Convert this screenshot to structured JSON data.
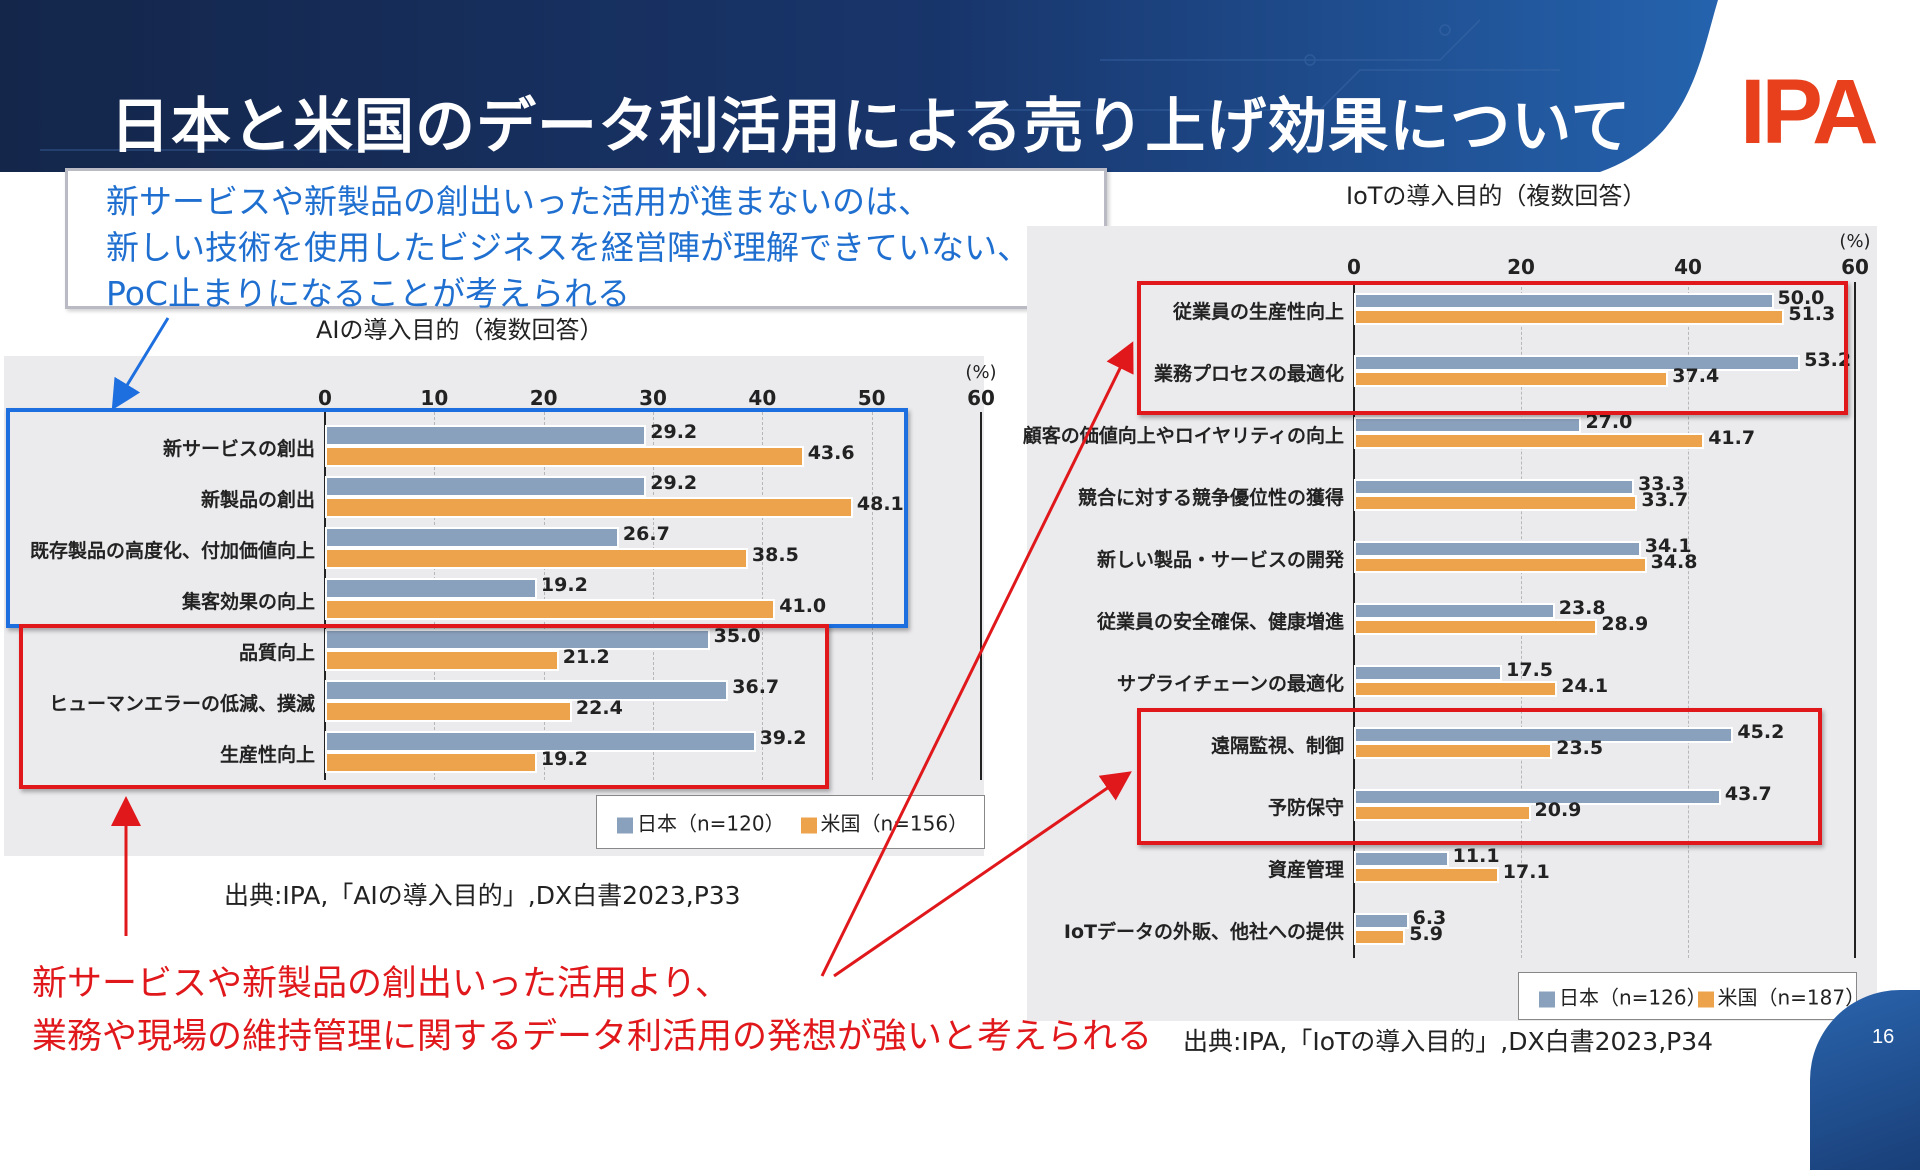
{
  "header": {
    "title": "日本と米国のデータ利活用による売り上げ効果について",
    "logo": "IPA",
    "page_number": "16"
  },
  "callouts": {
    "blue_lines": [
      "新サービスや新製品の創出いった活用が進まないのは、",
      "新しい技術を使用したビジネスを経営陣が理解できていない、",
      "PoC止まりになることが考えられる"
    ],
    "red_lines": [
      "新サービスや新製品の創出いった活用より、",
      "業務や現場の維持管理に関するデータ利活用の発想が強いと考えられる"
    ]
  },
  "colors": {
    "japan": "#8aa1bd",
    "us": "#eda34c",
    "highlight_red": "#e0181b",
    "highlight_blue": "#1d6fe0",
    "logo": "#e8401c"
  },
  "chart_data": [
    {
      "type": "bar",
      "orientation": "horizontal",
      "title": "AIの導入目的（複数回答）",
      "source": "出典:IPA,「AIの導入目的」,DX白書2023,P33",
      "unit_label": "(%)",
      "xlim": [
        0,
        60
      ],
      "xticks": [
        "0",
        "10",
        "20",
        "30",
        "40",
        "50",
        "60"
      ],
      "grid": true,
      "legend_position": "bottom-right",
      "categories": [
        "新サービスの創出",
        "新製品の創出",
        "既存製品の高度化、付加価値向上",
        "集客効果の向上",
        "品質向上",
        "ヒューマンエラーの低減、撲滅",
        "生産性向上"
      ],
      "series": [
        {
          "name": "日本（n=120）",
          "values": [
            29.2,
            29.2,
            26.7,
            19.2,
            35.0,
            36.7,
            39.2
          ]
        },
        {
          "name": "米国（n=156）",
          "values": [
            43.6,
            48.1,
            38.5,
            41.0,
            21.2,
            22.4,
            19.2
          ]
        }
      ]
    },
    {
      "type": "bar",
      "orientation": "horizontal",
      "title": "IoTの導入目的（複数回答）",
      "source": "出典:IPA,「IoTの導入目的」,DX白書2023,P34",
      "unit_label": "(%)",
      "xlim": [
        0,
        60
      ],
      "xticks": [
        "0",
        "20",
        "40",
        "60"
      ],
      "grid": true,
      "legend_position": "bottom-right",
      "categories": [
        "従業員の生産性向上",
        "業務プロセスの最適化",
        "顧客の価値向上やロイヤリティの向上",
        "競合に対する競争優位性の獲得",
        "新しい製品・サービスの開発",
        "従業員の安全確保、健康増進",
        "サプライチェーンの最適化",
        "遠隔監視、制御",
        "予防保守",
        "資産管理",
        "IoTデータの外販、他社への提供"
      ],
      "series": [
        {
          "name": "日本（n=126）",
          "values": [
            50.0,
            53.2,
            27.0,
            33.3,
            34.1,
            23.8,
            17.5,
            45.2,
            43.7,
            11.1,
            6.3
          ]
        },
        {
          "name": "米国（n=187）",
          "values": [
            51.3,
            37.4,
            41.7,
            33.7,
            34.8,
            28.9,
            24.1,
            23.5,
            20.9,
            17.1,
            5.9
          ]
        }
      ]
    }
  ]
}
